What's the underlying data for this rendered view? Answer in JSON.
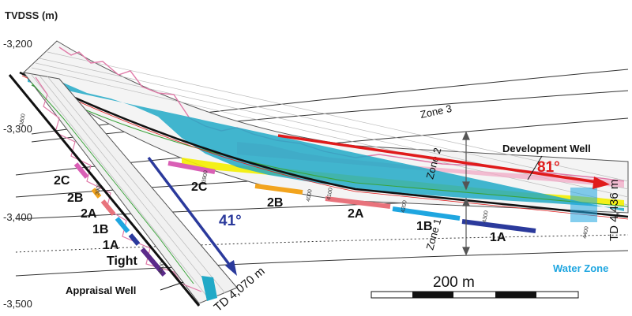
{
  "axis": {
    "title": "TVDSS (m)",
    "ticks": [
      "-3,200",
      "-3,300",
      "-3,400",
      "-3,500"
    ]
  },
  "zones_horizon": {
    "zone3": "Zone 3",
    "zone2": "Zone 2",
    "zone1": "Zone 1"
  },
  "wells": {
    "development": {
      "label": "Development Well",
      "angle": "81°",
      "td": "TD 4,436 m",
      "water_zone": "Water Zone",
      "zone_labels": [
        "2C",
        "2B",
        "2A",
        "1B",
        "1A"
      ],
      "zone_colors": [
        "#d95fb5",
        "#f2a41e",
        "#e8737c",
        "#1fa6e0",
        "#2b3a9c"
      ]
    },
    "appraisal": {
      "label": "Appraisal Well",
      "angle": "41°",
      "td": "TD 4,070 m",
      "zone_labels": [
        "2C",
        "2B",
        "2A",
        "1B",
        "1A",
        "Tight"
      ],
      "zone_colors": [
        "#d95fb5",
        "#f2a41e",
        "#e8737c",
        "#1fa6e0",
        "#2b3a9c",
        "#5b2a8a"
      ]
    }
  },
  "scale_bar": {
    "label": "200 m"
  },
  "depth_marks": [
    "3900",
    "4000",
    "4100",
    "4200",
    "4300",
    "4400",
    "3800",
    "3900",
    "4000"
  ],
  "colors": {
    "angle_dev": "#e01b1b",
    "angle_app": "#2b3a9c",
    "water_zone": "#1fa6e0",
    "log_pink": "#e07aa8",
    "log_yellow": "#f4f000",
    "log_cyan": "#21a9c7",
    "log_green": "#3aa33a"
  }
}
